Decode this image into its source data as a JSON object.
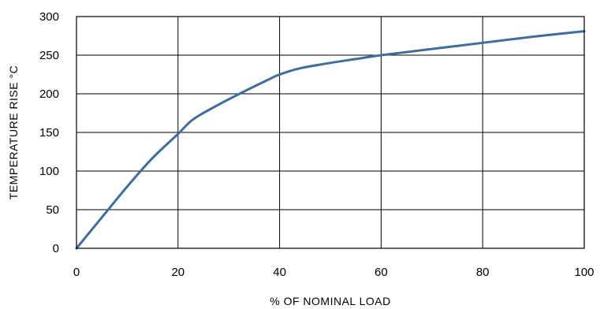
{
  "chart_data": {
    "type": "line",
    "xlabel": "% OF NOMINAL LOAD",
    "ylabel": "TEMPERATURE  RISE °C",
    "xlim": [
      0,
      100
    ],
    "ylim": [
      0,
      300
    ],
    "x_ticks": [
      "0",
      "20",
      "40",
      "60",
      "80",
      "100"
    ],
    "y_ticks": [
      "0",
      "50",
      "100",
      "150",
      "200",
      "250",
      "300"
    ],
    "grid": true,
    "series": [
      {
        "color": "#3f6d9e",
        "x": [
          0,
          5,
          10,
          15,
          20,
          23,
          28,
          33,
          38,
          40,
          44,
          50,
          55,
          60,
          70,
          80,
          90,
          100
        ],
        "y": [
          0,
          40,
          80,
          117,
          148,
          167,
          186,
          203,
          219,
          225,
          233,
          240,
          245,
          250,
          258,
          266,
          274,
          281
        ]
      }
    ]
  }
}
